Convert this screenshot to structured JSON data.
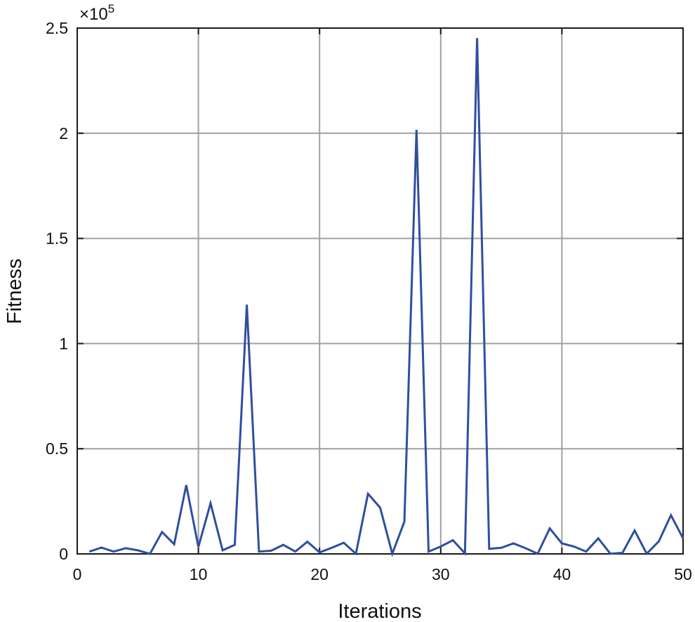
{
  "chart_data": {
    "type": "line",
    "title": "",
    "xlabel": "Iterations",
    "ylabel": "Fitness",
    "y_exponent_label": "×10",
    "y_exponent_power": "5",
    "xlim": [
      0,
      50
    ],
    "ylim": [
      0,
      250000
    ],
    "x_ticks": [
      0,
      10,
      20,
      30,
      40,
      50
    ],
    "x_tick_labels": [
      "0",
      "10",
      "20",
      "30",
      "40",
      "50"
    ],
    "y_ticks": [
      0,
      50000,
      100000,
      150000,
      200000,
      250000
    ],
    "y_tick_labels": [
      "0",
      "0.5",
      "1",
      "1.5",
      "2",
      "2.5"
    ],
    "grid": true,
    "legend": null,
    "colors": {
      "line": "#2f4f9f",
      "grid": "#a0a0a0",
      "axis": "#1a1a1a"
    },
    "series": [
      {
        "name": "Fitness",
        "x": [
          1,
          2,
          3,
          4,
          5,
          6,
          7,
          8,
          9,
          10,
          11,
          12,
          13,
          14,
          15,
          16,
          17,
          18,
          19,
          20,
          21,
          22,
          23,
          24,
          25,
          26,
          27,
          28,
          29,
          30,
          31,
          32,
          33,
          34,
          35,
          36,
          37,
          38,
          39,
          40,
          41,
          42,
          43,
          44,
          45,
          46,
          47,
          48,
          49,
          50
        ],
        "values": [
          1100,
          3000,
          1100,
          2700,
          1700,
          0,
          10400,
          4600,
          32700,
          3300,
          24100,
          1700,
          4300,
          118500,
          1100,
          1500,
          4300,
          1100,
          5800,
          700,
          2900,
          5300,
          100,
          28600,
          22000,
          100,
          15300,
          201600,
          1100,
          3500,
          6500,
          300,
          245300,
          2400,
          2900,
          5000,
          2700,
          100,
          12100,
          5000,
          3500,
          1100,
          7400,
          100,
          500,
          11100,
          100,
          6000,
          18400,
          7400
        ]
      }
    ]
  }
}
